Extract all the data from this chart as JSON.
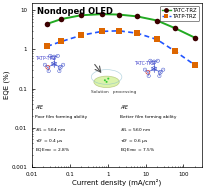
{
  "title": "Nondoped OLED",
  "xlabel": "Current density (mA/cm²)",
  "ylabel": "EQE (%)",
  "xlim": [
    0.01,
    300
  ],
  "ylim": [
    0.001,
    15
  ],
  "tatc_x": [
    0.025,
    0.06,
    0.2,
    0.7,
    2.0,
    6.0,
    20,
    60,
    200
  ],
  "tatc_y": [
    4.5,
    6.0,
    7.5,
    8.0,
    7.8,
    7.0,
    5.5,
    3.5,
    2.0
  ],
  "tatp_x": [
    0.025,
    0.06,
    0.2,
    0.7,
    2.0,
    6.0,
    20,
    60,
    200
  ],
  "tatp_y": [
    1.2,
    1.6,
    2.3,
    2.9,
    3.0,
    2.6,
    1.8,
    0.9,
    0.4
  ],
  "tatc_line_color": "#22aa22",
  "tatc_marker_color": "#3B0000",
  "tatp_line_color": "#2255ff",
  "tatp_marker_color": "#dd6600",
  "bg_color": "#ffffff",
  "legend_tatc": "TATC-TRZ",
  "legend_tatp": "TATP-TRZ"
}
